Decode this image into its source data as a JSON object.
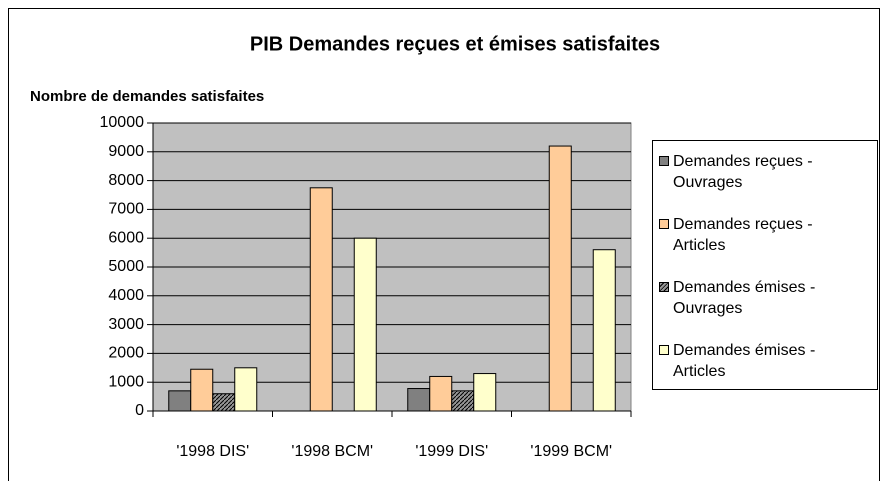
{
  "chart_data": {
    "type": "bar",
    "title": "PIB Demandes reçues et émises satisfaites",
    "y_label": "Nombre de demandes satisfaites",
    "categories": [
      "'1998 DIS'",
      "'1998 BCM'",
      "'1999 DIS'",
      "'1999 BCM'"
    ],
    "series": [
      {
        "name": "Demandes reçues - Ouvrages",
        "color": "#808080",
        "values": [
          700,
          null,
          780,
          null
        ]
      },
      {
        "name": "Demandes reçues - Articles",
        "color": "#ffcc99",
        "values": [
          1450,
          7750,
          1200,
          9200
        ]
      },
      {
        "name": "Demandes émises - Ouvrages",
        "color": "#969696",
        "hatched": true,
        "values": [
          600,
          null,
          700,
          null
        ]
      },
      {
        "name": "Demandes émises - Articles",
        "color": "#ffffcc",
        "values": [
          1500,
          6000,
          1300,
          5600
        ]
      }
    ],
    "ylim": [
      0,
      10000
    ],
    "yticks": [
      0,
      1000,
      2000,
      3000,
      4000,
      5000,
      6000,
      7000,
      8000,
      9000,
      10000
    ],
    "grid": true,
    "plot_background": "#c0c0c0",
    "legend": "right"
  }
}
